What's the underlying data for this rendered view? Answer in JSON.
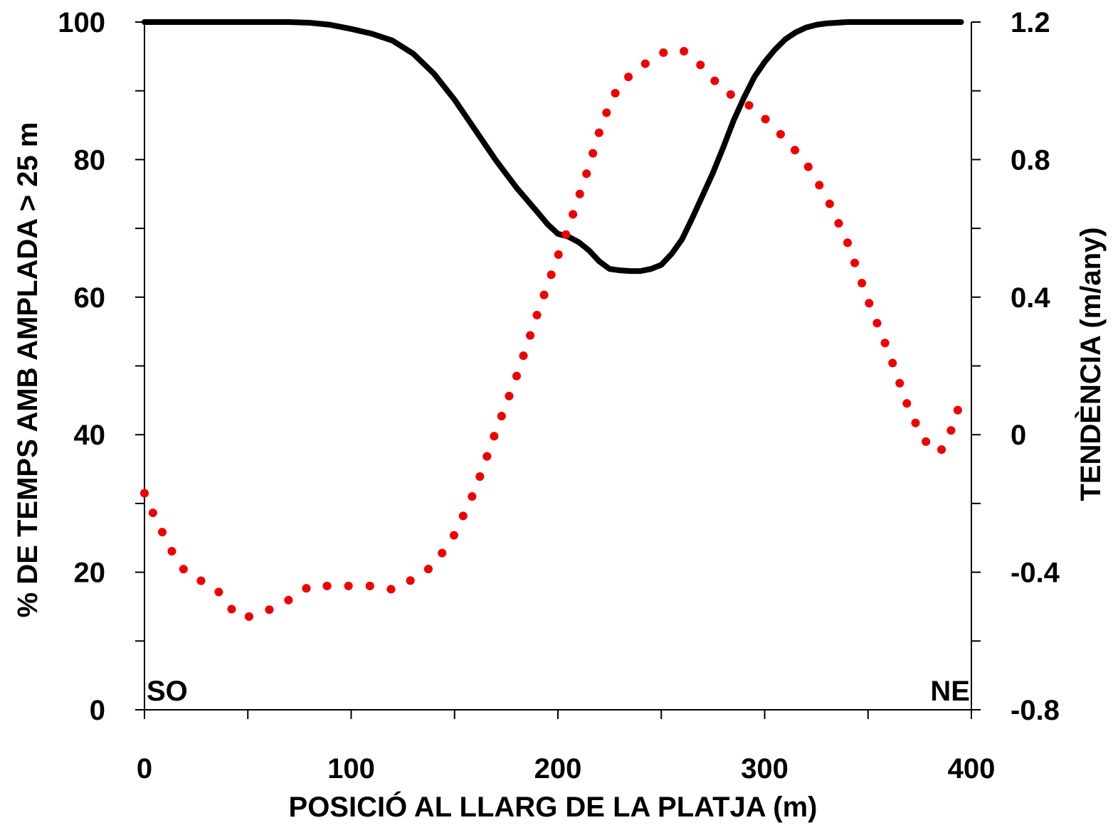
{
  "chart_data": {
    "type": "line",
    "xlabel": "POSICIÓ AL LLARG DE LA PLATJA (m)",
    "ylabel_left": "% DE TEMPS AMB AMPLADA > 25 m",
    "ylabel_right": "TENDÈNCIA (m/any)",
    "xlim": [
      0,
      400
    ],
    "ylim_left": [
      0,
      100
    ],
    "ylim_right": [
      -0.8,
      1.2
    ],
    "x_ticks": [
      0,
      100,
      200,
      300,
      400
    ],
    "x_tick_labels": [
      "0",
      "100",
      "200",
      "300",
      "400"
    ],
    "y_left_ticks": [
      0,
      20,
      40,
      60,
      80,
      100
    ],
    "y_left_tick_labels": [
      "0",
      "20",
      "40",
      "60",
      "80",
      "100"
    ],
    "y_right_ticks": [
      -0.8,
      -0.4,
      0,
      0.4,
      0.8,
      1.2
    ],
    "y_right_tick_labels": [
      "-0.8",
      "-0.4",
      "0",
      "0.4",
      "0.8",
      "1.2"
    ],
    "grid": false,
    "annotations": [
      {
        "text": "SO",
        "position": "bottom-left"
      },
      {
        "text": "NE",
        "position": "bottom-right"
      }
    ],
    "series": [
      {
        "axis": "left",
        "style": "solid",
        "color": "#000000",
        "x": [
          0,
          20,
          40,
          60,
          70,
          80,
          90,
          100,
          110,
          120,
          130,
          140,
          150,
          160,
          170,
          180,
          190,
          195,
          200,
          205,
          210,
          215,
          220,
          225,
          230,
          235,
          240,
          245,
          250,
          255,
          260,
          265,
          270,
          275,
          280,
          285,
          290,
          295,
          300,
          305,
          310,
          315,
          320,
          325,
          330,
          340,
          350,
          360,
          380,
          395
        ],
        "values": [
          100,
          100,
          100,
          100,
          100,
          99.9,
          99.6,
          99,
          98.3,
          97.3,
          95.4,
          92.5,
          88.7,
          84.3,
          79.9,
          75.9,
          72.4,
          70.6,
          69.2,
          68.8,
          68.0,
          66.8,
          65.2,
          64.1,
          63.9,
          63.8,
          63.8,
          64.1,
          64.7,
          66.3,
          68.4,
          71.5,
          74.8,
          78.1,
          81.8,
          85.7,
          89.0,
          92.0,
          94.2,
          96.0,
          97.5,
          98.5,
          99.2,
          99.6,
          99.8,
          100,
          100,
          100,
          100,
          100
        ]
      },
      {
        "axis": "right",
        "style": "dotted",
        "color": "#ee0000",
        "x": [
          0,
          5,
          10,
          15,
          20,
          25,
          30,
          35,
          40,
          45,
          50,
          55,
          60,
          70,
          80,
          90,
          100,
          110,
          120,
          130,
          140,
          150,
          160,
          170,
          180,
          190,
          200,
          205,
          210,
          215,
          220,
          225,
          230,
          240,
          250,
          260,
          270,
          280,
          290,
          300,
          310,
          320,
          330,
          340,
          350,
          360,
          370,
          375,
          380,
          385,
          390,
          395
        ],
        "values": [
          -0.17,
          -0.24,
          -0.3,
          -0.36,
          -0.4,
          -0.42,
          -0.43,
          -0.45,
          -0.49,
          -0.53,
          -0.53,
          -0.52,
          -0.51,
          -0.48,
          -0.44,
          -0.44,
          -0.44,
          -0.44,
          -0.45,
          -0.42,
          -0.38,
          -0.29,
          -0.16,
          0.01,
          0.17,
          0.35,
          0.52,
          0.6,
          0.69,
          0.78,
          0.88,
          0.96,
          1.02,
          1.07,
          1.11,
          1.12,
          1.07,
          1.0,
          0.97,
          0.92,
          0.86,
          0.79,
          0.69,
          0.56,
          0.39,
          0.24,
          0.07,
          0.01,
          -0.04,
          -0.05,
          0.01,
          0.1
        ]
      }
    ]
  }
}
